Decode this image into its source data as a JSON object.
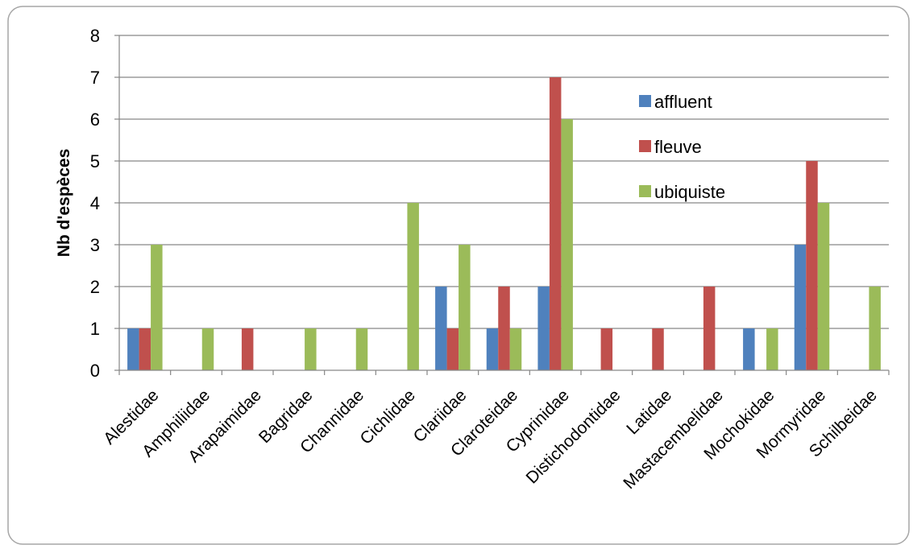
{
  "chart_data": {
    "type": "bar",
    "title": "",
    "xlabel": "",
    "ylabel": "Nb d'espèces",
    "ylim": [
      0,
      8
    ],
    "yticks": [
      0,
      1,
      2,
      3,
      4,
      5,
      6,
      7,
      8
    ],
    "grid": true,
    "legend_position": "top-right inside plot",
    "categories": [
      "Alestidae",
      "Amphiliidae",
      "Arapaimidae",
      "Bagridae",
      "Channidae",
      "Cichlidae",
      "Clariidae",
      "Claroteidae",
      "Cyprinidae",
      "Distichodontidae",
      "Latidae",
      "Mastacembelidae",
      "Mochokidae",
      "Mormyridae",
      "Schilbeidae"
    ],
    "series": [
      {
        "name": "affluent",
        "color": "#4F81BD",
        "values": [
          1,
          0,
          0,
          0,
          0,
          0,
          2,
          1,
          2,
          0,
          0,
          0,
          1,
          3,
          0
        ]
      },
      {
        "name": "fleuve",
        "color": "#C0504D",
        "values": [
          1,
          0,
          1,
          0,
          0,
          0,
          1,
          2,
          7,
          1,
          1,
          2,
          0,
          5,
          0
        ]
      },
      {
        "name": "ubiquiste",
        "color": "#9BBB59",
        "values": [
          3,
          1,
          0,
          1,
          1,
          4,
          3,
          1,
          6,
          0,
          0,
          0,
          1,
          4,
          2
        ]
      }
    ]
  }
}
